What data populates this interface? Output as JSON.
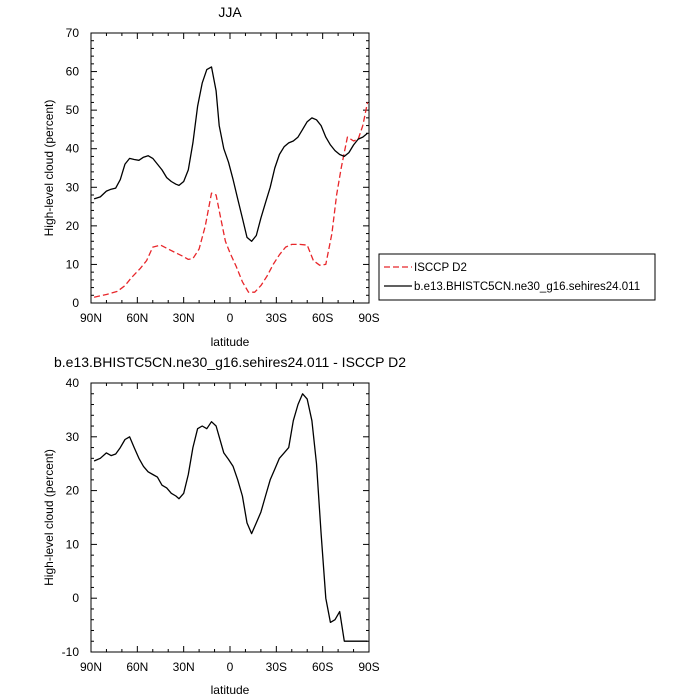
{
  "chart_data": [
    {
      "type": "line",
      "title": "JJA",
      "xlabel": "latitude",
      "ylabel": "High-level cloud (percent)",
      "xlim": [
        90,
        -90
      ],
      "ylim": [
        0,
        70
      ],
      "x_ticks": [
        90,
        60,
        30,
        0,
        -30,
        -60,
        -90
      ],
      "x_tick_labels": [
        "90N",
        "60N",
        "30N",
        "0",
        "30S",
        "60S",
        "90S"
      ],
      "y_ticks": [
        0,
        10,
        20,
        30,
        40,
        50,
        60,
        70
      ],
      "y_tick_labels": [
        "0",
        "10",
        "20",
        "30",
        "40",
        "50",
        "60",
        "70"
      ],
      "legend": {
        "placement": "right"
      },
      "series": [
        {
          "name": "ISCCP D2",
          "color": "#e8262a",
          "dash": "dashed",
          "x": [
            88,
            80,
            73,
            68,
            64,
            58,
            54,
            50,
            45,
            40,
            35,
            30,
            27,
            24,
            20,
            16,
            12,
            9,
            6,
            3,
            0,
            -4,
            -8,
            -12,
            -16,
            -20,
            -24,
            -28,
            -32,
            -36,
            -40,
            -45,
            -50,
            -54,
            -58,
            -62,
            -66,
            -69,
            -72,
            -76,
            -80,
            -83,
            -86,
            -89
          ],
          "y": [
            1.5,
            2.2,
            3.0,
            4.5,
            6.5,
            9.0,
            11.0,
            14.5,
            15.0,
            14.0,
            13.0,
            12.0,
            11.3,
            11.5,
            14.0,
            20.0,
            28.5,
            28.0,
            22.0,
            16.0,
            13.0,
            9.5,
            5.5,
            2.8,
            2.8,
            4.5,
            7.0,
            10.0,
            12.5,
            14.5,
            15.2,
            15.2,
            15.0,
            11.0,
            9.8,
            10.0,
            18.0,
            28.0,
            35.0,
            43.0,
            42.0,
            42.5,
            46.0,
            52.0
          ]
        },
        {
          "name": "b.e13.BHISTC5CN.ne30_g16.sehires24.011",
          "color": "#000000",
          "dash": "solid",
          "x": [
            88,
            84,
            80,
            77,
            74,
            71,
            68,
            65,
            62,
            59,
            56,
            53,
            50,
            47,
            44,
            41,
            38,
            35,
            33,
            30,
            27,
            24,
            21,
            18,
            15,
            12,
            9,
            7,
            4,
            1,
            -2,
            -5,
            -8,
            -11,
            -14,
            -17,
            -20,
            -23,
            -26,
            -29,
            -32,
            -35,
            -38,
            -41,
            -44,
            -47,
            -50,
            -53,
            -56,
            -59,
            -62,
            -65,
            -68,
            -71,
            -74,
            -77,
            -80,
            -83,
            -86,
            -89
          ],
          "y": [
            27,
            27.5,
            29,
            29.5,
            29.8,
            32,
            36,
            37.5,
            37.2,
            37,
            37.8,
            38.2,
            37.5,
            36,
            34.5,
            32.5,
            31.5,
            30.8,
            30.5,
            31.5,
            34.5,
            41.5,
            51,
            57,
            60.5,
            61.2,
            55,
            46,
            40,
            36.5,
            32,
            27,
            22,
            17,
            16,
            17.5,
            22,
            26,
            30,
            35,
            38.5,
            40.5,
            41.5,
            42,
            43,
            45,
            47,
            48,
            47.5,
            46,
            43,
            41,
            39.5,
            38.5,
            38,
            39,
            41,
            42.5,
            43,
            44
          ]
        }
      ]
    },
    {
      "type": "line",
      "title": "b.e13.BHISTC5CN.ne30_g16.sehires24.011 - ISCCP D2",
      "xlabel": "latitude",
      "ylabel": "High-level cloud (percent)",
      "xlim": [
        90,
        -90
      ],
      "ylim": [
        -10,
        40
      ],
      "x_ticks": [
        90,
        60,
        30,
        0,
        -30,
        -60,
        -90
      ],
      "x_tick_labels": [
        "90N",
        "60N",
        "30N",
        "0",
        "30S",
        "60S",
        "90S"
      ],
      "y_ticks": [
        -10,
        0,
        10,
        20,
        30,
        40
      ],
      "y_tick_labels": [
        "-10",
        "0",
        "10",
        "20",
        "30",
        "40"
      ],
      "series": [
        {
          "color": "#000000",
          "dash": "solid",
          "x": [
            88,
            84,
            80,
            77,
            74,
            71,
            68,
            65,
            62,
            59,
            56,
            53,
            50,
            47,
            44,
            41,
            38,
            35,
            33,
            30,
            27,
            24,
            21,
            18,
            15,
            12,
            9,
            7,
            4,
            1,
            -2,
            -5,
            -8,
            -11,
            -14,
            -17,
            -20,
            -23,
            -26,
            -29,
            -32,
            -35,
            -38,
            -41,
            -44,
            -47,
            -50,
            -53,
            -56,
            -59,
            -62,
            -65,
            -68,
            -71,
            -74,
            -77,
            -80,
            -83,
            -86,
            -89
          ],
          "y": [
            25.5,
            26,
            27,
            26.5,
            26.8,
            28,
            29.5,
            30,
            28,
            26,
            24.5,
            23.5,
            23,
            22.5,
            21,
            20.5,
            19.5,
            19,
            18.5,
            19.5,
            23,
            28,
            31.5,
            32,
            31.5,
            32.8,
            32,
            30,
            27,
            25.8,
            24.5,
            22,
            19,
            14,
            12,
            14,
            16,
            19,
            22,
            24,
            26,
            27,
            28,
            33,
            36,
            38,
            37,
            33,
            25,
            12,
            0,
            -4.5,
            -4,
            -2.5,
            -8,
            -8,
            -8,
            -8,
            -8,
            -8
          ]
        }
      ]
    }
  ]
}
